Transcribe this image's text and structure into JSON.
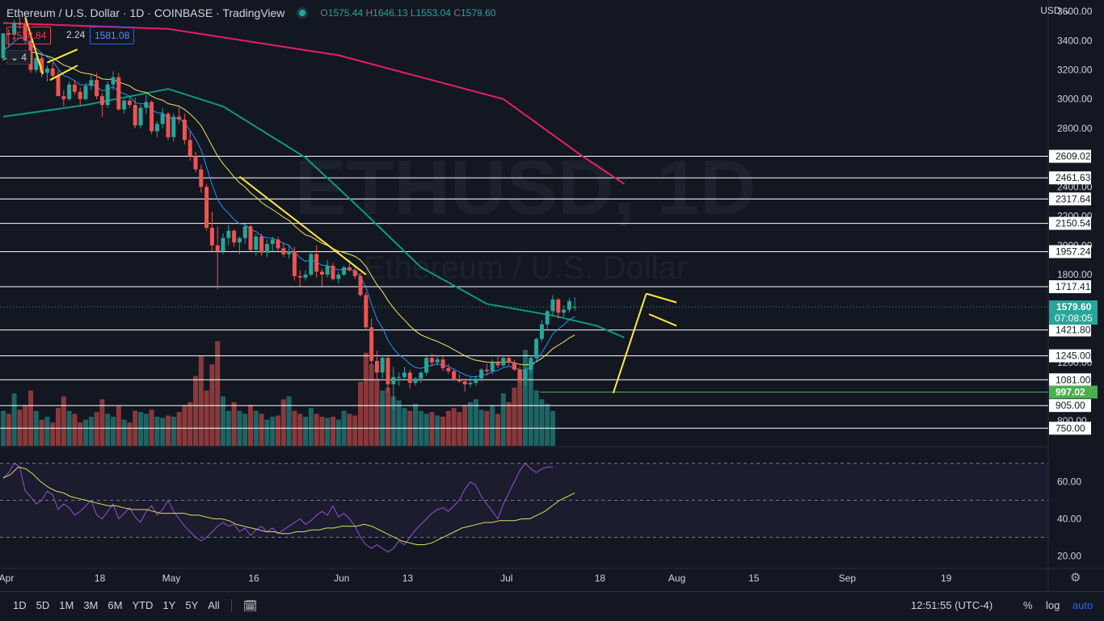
{
  "header": {
    "symbol_title": "Ethereum / U.S. Dollar · 1D · COINBASE · TradingView",
    "open_label": "O",
    "open": "1575.44",
    "high_label": "H",
    "high": "1646.13",
    "low_label": "L",
    "low": "1553.04",
    "close_label": "C",
    "close": "1579.60"
  },
  "quote": {
    "bid": "1578.84",
    "spread": "2.24",
    "ask": "1581.08"
  },
  "indicator_count": "4",
  "currency": "USD",
  "watermark": {
    "main": "ETHUSD, 1D",
    "sub": "Ethereum / U.S. Dollar"
  },
  "bottom_bar": {
    "ranges": [
      "1D",
      "5D",
      "1M",
      "3M",
      "6M",
      "YTD",
      "1Y",
      "5Y",
      "All"
    ],
    "clock": "12:51:55 (UTC-4)",
    "percent": "%",
    "log": "log",
    "auto": "auto"
  },
  "colors": {
    "background": "#131722",
    "up": "#26a69a",
    "down": "#ef5350",
    "sma200": "#e91e63",
    "sma50": "#089981",
    "ema20": "#f4e55a",
    "ema8": "#2196f3",
    "trend": "#ffeb3b",
    "rsi": "#9c4fd6",
    "rsi_ma": "#d4e157",
    "level_line": "#ffffff",
    "support_green": "#4caf50"
  },
  "chart_data": {
    "type": "candlestick",
    "price_axis": {
      "ticks": [
        3600,
        3400,
        3200,
        3000,
        2800,
        2400,
        2200,
        2000,
        1800,
        1200,
        800
      ],
      "tick_labels": [
        "3600.00",
        "3400.00",
        "3200.00",
        "3000.00",
        "2800.00",
        "2400.00",
        "2200.00",
        "2000.00",
        "1800.00",
        "1200.00",
        "800.00"
      ],
      "range": [
        630,
        3650
      ]
    },
    "horizontal_levels": [
      {
        "label": "2609.02",
        "value": 2609.02
      },
      {
        "label": "2461.63",
        "value": 2461.63
      },
      {
        "label": "2317.64",
        "value": 2317.64
      },
      {
        "label": "2150.54",
        "value": 2150.54
      },
      {
        "label": "1957.24",
        "value": 1957.24
      },
      {
        "label": "1717.41",
        "value": 1717.41
      },
      {
        "label": "1421.80",
        "value": 1421.8
      },
      {
        "label": "1245.00",
        "value": 1245.0
      },
      {
        "label": "1081.00",
        "value": 1081.0
      },
      {
        "label": "905.00",
        "value": 905.0
      },
      {
        "label": "750.00",
        "value": 750.0
      }
    ],
    "support_level": {
      "label": "997.02",
      "value": 997.02
    },
    "last_price": {
      "label": "1579.60",
      "countdown": "07:08:05",
      "value": 1579.6
    },
    "time_axis": {
      "labels": [
        "Apr",
        "18",
        "May",
        "16",
        "Jun",
        "13",
        "Jul",
        "18",
        "Aug",
        "15",
        "Sep",
        "19"
      ],
      "label_days": [
        0,
        17,
        30,
        45,
        61,
        73,
        91,
        108,
        122,
        136,
        153,
        171
      ],
      "start_date": "2022-04-01"
    },
    "candles": [
      {
        "o": 3280,
        "h": 3440,
        "l": 3260,
        "c": 3450
      },
      {
        "o": 3450,
        "h": 3480,
        "l": 3360,
        "c": 3440
      },
      {
        "o": 3440,
        "h": 3540,
        "l": 3400,
        "c": 3520
      },
      {
        "o": 3520,
        "h": 3580,
        "l": 3480,
        "c": 3510
      },
      {
        "o": 3510,
        "h": 3540,
        "l": 3380,
        "c": 3400
      },
      {
        "o": 3400,
        "h": 3420,
        "l": 3180,
        "c": 3200
      },
      {
        "o": 3200,
        "h": 3300,
        "l": 3180,
        "c": 3280
      },
      {
        "o": 3280,
        "h": 3320,
        "l": 3150,
        "c": 3180
      },
      {
        "o": 3180,
        "h": 3230,
        "l": 3120,
        "c": 3210
      },
      {
        "o": 3210,
        "h": 3250,
        "l": 3130,
        "c": 3160
      },
      {
        "o": 3160,
        "h": 3200,
        "l": 3020,
        "c": 3020
      },
      {
        "o": 3020,
        "h": 3060,
        "l": 2950,
        "c": 3000
      },
      {
        "o": 3000,
        "h": 3120,
        "l": 2990,
        "c": 3100
      },
      {
        "o": 3100,
        "h": 3130,
        "l": 3030,
        "c": 3050
      },
      {
        "o": 3050,
        "h": 3080,
        "l": 2960,
        "c": 3000
      },
      {
        "o": 3000,
        "h": 3110,
        "l": 2990,
        "c": 3090
      },
      {
        "o": 3090,
        "h": 3170,
        "l": 3060,
        "c": 3130
      },
      {
        "o": 3130,
        "h": 3180,
        "l": 3000,
        "c": 3020
      },
      {
        "o": 3020,
        "h": 3040,
        "l": 2880,
        "c": 2960
      },
      {
        "o": 2960,
        "h": 3120,
        "l": 2940,
        "c": 3100
      },
      {
        "o": 3100,
        "h": 3190,
        "l": 3060,
        "c": 3150
      },
      {
        "o": 3150,
        "h": 3180,
        "l": 2920,
        "c": 2930
      },
      {
        "o": 2930,
        "h": 3000,
        "l": 2900,
        "c": 2990
      },
      {
        "o": 2990,
        "h": 3010,
        "l": 2940,
        "c": 2960
      },
      {
        "o": 2960,
        "h": 3010,
        "l": 2800,
        "c": 2820
      },
      {
        "o": 2820,
        "h": 2960,
        "l": 2800,
        "c": 2940
      },
      {
        "o": 2940,
        "h": 3030,
        "l": 2900,
        "c": 2980
      },
      {
        "o": 2980,
        "h": 2990,
        "l": 2760,
        "c": 2780
      },
      {
        "o": 2780,
        "h": 2850,
        "l": 2740,
        "c": 2830
      },
      {
        "o": 2830,
        "h": 2940,
        "l": 2800,
        "c": 2900
      },
      {
        "o": 2900,
        "h": 2910,
        "l": 2720,
        "c": 2740
      },
      {
        "o": 2740,
        "h": 2900,
        "l": 2710,
        "c": 2880
      },
      {
        "o": 2880,
        "h": 2960,
        "l": 2830,
        "c": 2860
      },
      {
        "o": 2860,
        "h": 2900,
        "l": 2690,
        "c": 2720
      },
      {
        "o": 2720,
        "h": 2780,
        "l": 2580,
        "c": 2610
      },
      {
        "o": 2610,
        "h": 2640,
        "l": 2500,
        "c": 2520
      },
      {
        "o": 2520,
        "h": 2550,
        "l": 2360,
        "c": 2400
      },
      {
        "o": 2400,
        "h": 2420,
        "l": 2100,
        "c": 2120
      },
      {
        "o": 2120,
        "h": 2230,
        "l": 1960,
        "c": 2000
      },
      {
        "o": 2000,
        "h": 2130,
        "l": 1700,
        "c": 1960
      },
      {
        "o": 1960,
        "h": 2080,
        "l": 1940,
        "c": 2050
      },
      {
        "o": 2050,
        "h": 2140,
        "l": 2000,
        "c": 2100
      },
      {
        "o": 2100,
        "h": 2110,
        "l": 1990,
        "c": 2020
      },
      {
        "o": 2020,
        "h": 2060,
        "l": 1940,
        "c": 2050
      },
      {
        "o": 2050,
        "h": 2150,
        "l": 2010,
        "c": 2130
      },
      {
        "o": 2130,
        "h": 2140,
        "l": 1960,
        "c": 1970
      },
      {
        "o": 1970,
        "h": 2080,
        "l": 1930,
        "c": 2060
      },
      {
        "o": 2060,
        "h": 2080,
        "l": 1930,
        "c": 1950
      },
      {
        "o": 1950,
        "h": 2040,
        "l": 1920,
        "c": 2010
      },
      {
        "o": 2010,
        "h": 2060,
        "l": 1960,
        "c": 2040
      },
      {
        "o": 2040,
        "h": 2060,
        "l": 1960,
        "c": 1980
      },
      {
        "o": 1980,
        "h": 2020,
        "l": 1920,
        "c": 1940
      },
      {
        "o": 1940,
        "h": 2000,
        "l": 1910,
        "c": 1960
      },
      {
        "o": 1960,
        "h": 1990,
        "l": 1760,
        "c": 1790
      },
      {
        "o": 1790,
        "h": 1830,
        "l": 1720,
        "c": 1780
      },
      {
        "o": 1780,
        "h": 1830,
        "l": 1760,
        "c": 1800
      },
      {
        "o": 1800,
        "h": 1960,
        "l": 1790,
        "c": 1940
      },
      {
        "o": 1940,
        "h": 2000,
        "l": 1780,
        "c": 1820
      },
      {
        "o": 1820,
        "h": 1840,
        "l": 1720,
        "c": 1800
      },
      {
        "o": 1800,
        "h": 1900,
        "l": 1780,
        "c": 1860
      },
      {
        "o": 1860,
        "h": 1880,
        "l": 1760,
        "c": 1770
      },
      {
        "o": 1770,
        "h": 1820,
        "l": 1740,
        "c": 1800
      },
      {
        "o": 1800,
        "h": 1860,
        "l": 1790,
        "c": 1850
      },
      {
        "o": 1850,
        "h": 1900,
        "l": 1820,
        "c": 1830
      },
      {
        "o": 1830,
        "h": 1850,
        "l": 1770,
        "c": 1790
      },
      {
        "o": 1790,
        "h": 1810,
        "l": 1650,
        "c": 1660
      },
      {
        "o": 1660,
        "h": 1680,
        "l": 1420,
        "c": 1440
      },
      {
        "o": 1440,
        "h": 1500,
        "l": 1180,
        "c": 1210
      },
      {
        "o": 1210,
        "h": 1280,
        "l": 1080,
        "c": 1130
      },
      {
        "o": 1130,
        "h": 1250,
        "l": 1090,
        "c": 1230
      },
      {
        "o": 1230,
        "h": 1240,
        "l": 1000,
        "c": 1050
      },
      {
        "o": 1050,
        "h": 1170,
        "l": 880,
        "c": 1100
      },
      {
        "o": 1100,
        "h": 1130,
        "l": 1040,
        "c": 1100
      },
      {
        "o": 1100,
        "h": 1170,
        "l": 1080,
        "c": 1130
      },
      {
        "o": 1130,
        "h": 1150,
        "l": 1020,
        "c": 1060
      },
      {
        "o": 1060,
        "h": 1100,
        "l": 1040,
        "c": 1090
      },
      {
        "o": 1090,
        "h": 1140,
        "l": 1060,
        "c": 1130
      },
      {
        "o": 1130,
        "h": 1240,
        "l": 1110,
        "c": 1230
      },
      {
        "o": 1230,
        "h": 1260,
        "l": 1170,
        "c": 1200
      },
      {
        "o": 1200,
        "h": 1250,
        "l": 1180,
        "c": 1220
      },
      {
        "o": 1220,
        "h": 1240,
        "l": 1140,
        "c": 1160
      },
      {
        "o": 1160,
        "h": 1190,
        "l": 1120,
        "c": 1140
      },
      {
        "o": 1140,
        "h": 1160,
        "l": 1070,
        "c": 1080
      },
      {
        "o": 1080,
        "h": 1120,
        "l": 1060,
        "c": 1070
      },
      {
        "o": 1070,
        "h": 1090,
        "l": 1000,
        "c": 1050
      },
      {
        "o": 1050,
        "h": 1100,
        "l": 1030,
        "c": 1060
      },
      {
        "o": 1060,
        "h": 1110,
        "l": 1040,
        "c": 1090
      },
      {
        "o": 1090,
        "h": 1160,
        "l": 1070,
        "c": 1150
      },
      {
        "o": 1150,
        "h": 1190,
        "l": 1110,
        "c": 1140
      },
      {
        "o": 1140,
        "h": 1220,
        "l": 1120,
        "c": 1200
      },
      {
        "o": 1200,
        "h": 1240,
        "l": 1160,
        "c": 1180
      },
      {
        "o": 1180,
        "h": 1250,
        "l": 1170,
        "c": 1230
      },
      {
        "o": 1230,
        "h": 1250,
        "l": 1180,
        "c": 1200
      },
      {
        "o": 1200,
        "h": 1220,
        "l": 1140,
        "c": 1150
      },
      {
        "o": 1150,
        "h": 1170,
        "l": 1060,
        "c": 1080
      },
      {
        "o": 1080,
        "h": 1160,
        "l": 1040,
        "c": 1150
      },
      {
        "o": 1150,
        "h": 1250,
        "l": 1130,
        "c": 1230
      },
      {
        "o": 1230,
        "h": 1370,
        "l": 1220,
        "c": 1360
      },
      {
        "o": 1360,
        "h": 1490,
        "l": 1340,
        "c": 1460
      },
      {
        "o": 1460,
        "h": 1560,
        "l": 1420,
        "c": 1550
      },
      {
        "o": 1550,
        "h": 1660,
        "l": 1520,
        "c": 1630
      },
      {
        "o": 1630,
        "h": 1640,
        "l": 1500,
        "c": 1540
      },
      {
        "o": 1540,
        "h": 1590,
        "l": 1510,
        "c": 1560
      },
      {
        "o": 1560,
        "h": 1640,
        "l": 1540,
        "c": 1620
      },
      {
        "o": 1575.44,
        "h": 1646.13,
        "l": 1553.04,
        "c": 1579.6
      }
    ],
    "volume": [
      60,
      55,
      90,
      62,
      70,
      95,
      60,
      45,
      50,
      40,
      65,
      85,
      60,
      55,
      40,
      45,
      50,
      58,
      80,
      55,
      50,
      68,
      45,
      40,
      60,
      58,
      55,
      62,
      50,
      48,
      52,
      50,
      58,
      70,
      75,
      120,
      155,
      95,
      140,
      180,
      85,
      60,
      75,
      60,
      55,
      70,
      60,
      55,
      45,
      50,
      52,
      80,
      85,
      60,
      55,
      50,
      65,
      55,
      50,
      48,
      50,
      45,
      60,
      55,
      52,
      110,
      160,
      140,
      115,
      95,
      100,
      85,
      78,
      65,
      60,
      72,
      60,
      55,
      58,
      52,
      50,
      60,
      65,
      58,
      70,
      75,
      80,
      62,
      60,
      70,
      55,
      90,
      75,
      100,
      130,
      165,
      145,
      95,
      80,
      72,
      60
    ],
    "sma200": [
      3520,
      3480,
      3300,
      3000,
      2620,
      2420
    ],
    "sma200_days": [
      0,
      30,
      61,
      91,
      105,
      113
    ],
    "sma50": [
      2880,
      2960,
      3070,
      2950,
      2600,
      2250,
      1850,
      1600,
      1520,
      1450,
      1370
    ],
    "sma50_days": [
      0,
      15,
      30,
      40,
      55,
      65,
      76,
      88,
      100,
      108,
      113
    ],
    "rsi_axis": {
      "ticks": [
        60,
        40,
        20
      ],
      "tick_labels": [
        "60.00",
        "40.00",
        "20.00"
      ],
      "range": [
        14,
        76
      ],
      "bands": [
        70,
        50,
        30
      ]
    },
    "rsi": [
      62,
      65,
      70,
      68,
      55,
      52,
      48,
      50,
      55,
      53,
      45,
      48,
      46,
      42,
      44,
      47,
      50,
      42,
      40,
      44,
      48,
      40,
      43,
      46,
      41,
      38,
      44,
      47,
      42,
      45,
      50,
      44,
      40,
      36,
      33,
      30,
      28,
      30,
      33,
      36,
      38,
      36,
      37,
      33,
      35,
      31,
      34,
      36,
      33,
      35,
      32,
      34,
      36,
      38,
      40,
      37,
      39,
      42,
      44,
      42,
      47,
      41,
      43,
      40,
      36,
      30,
      26,
      24,
      26,
      24,
      22,
      24,
      28,
      26,
      30,
      34,
      37,
      40,
      43,
      45,
      46,
      44,
      47,
      50,
      56,
      60,
      58,
      52,
      48,
      44,
      40,
      48,
      54,
      60,
      66,
      70,
      67,
      65,
      67,
      68,
      68
    ],
    "rsi_ma": [
      62,
      64,
      68,
      67,
      64,
      60,
      57,
      55,
      54,
      52,
      51,
      50,
      49,
      48,
      47,
      47,
      46,
      45,
      45,
      45,
      44,
      43,
      43,
      43,
      43,
      42,
      42,
      41,
      40,
      40,
      39,
      37,
      36,
      35,
      34,
      33,
      33,
      32,
      32,
      33,
      33,
      34,
      34,
      35,
      35,
      36,
      36,
      36,
      37,
      36,
      34,
      32,
      30,
      28,
      27,
      26,
      26,
      27,
      29,
      31,
      33,
      35,
      36,
      37,
      38,
      38,
      39,
      39,
      39,
      40,
      40,
      42,
      44,
      47,
      50,
      52,
      54
    ],
    "rsi_ma_start_day": 0
  }
}
